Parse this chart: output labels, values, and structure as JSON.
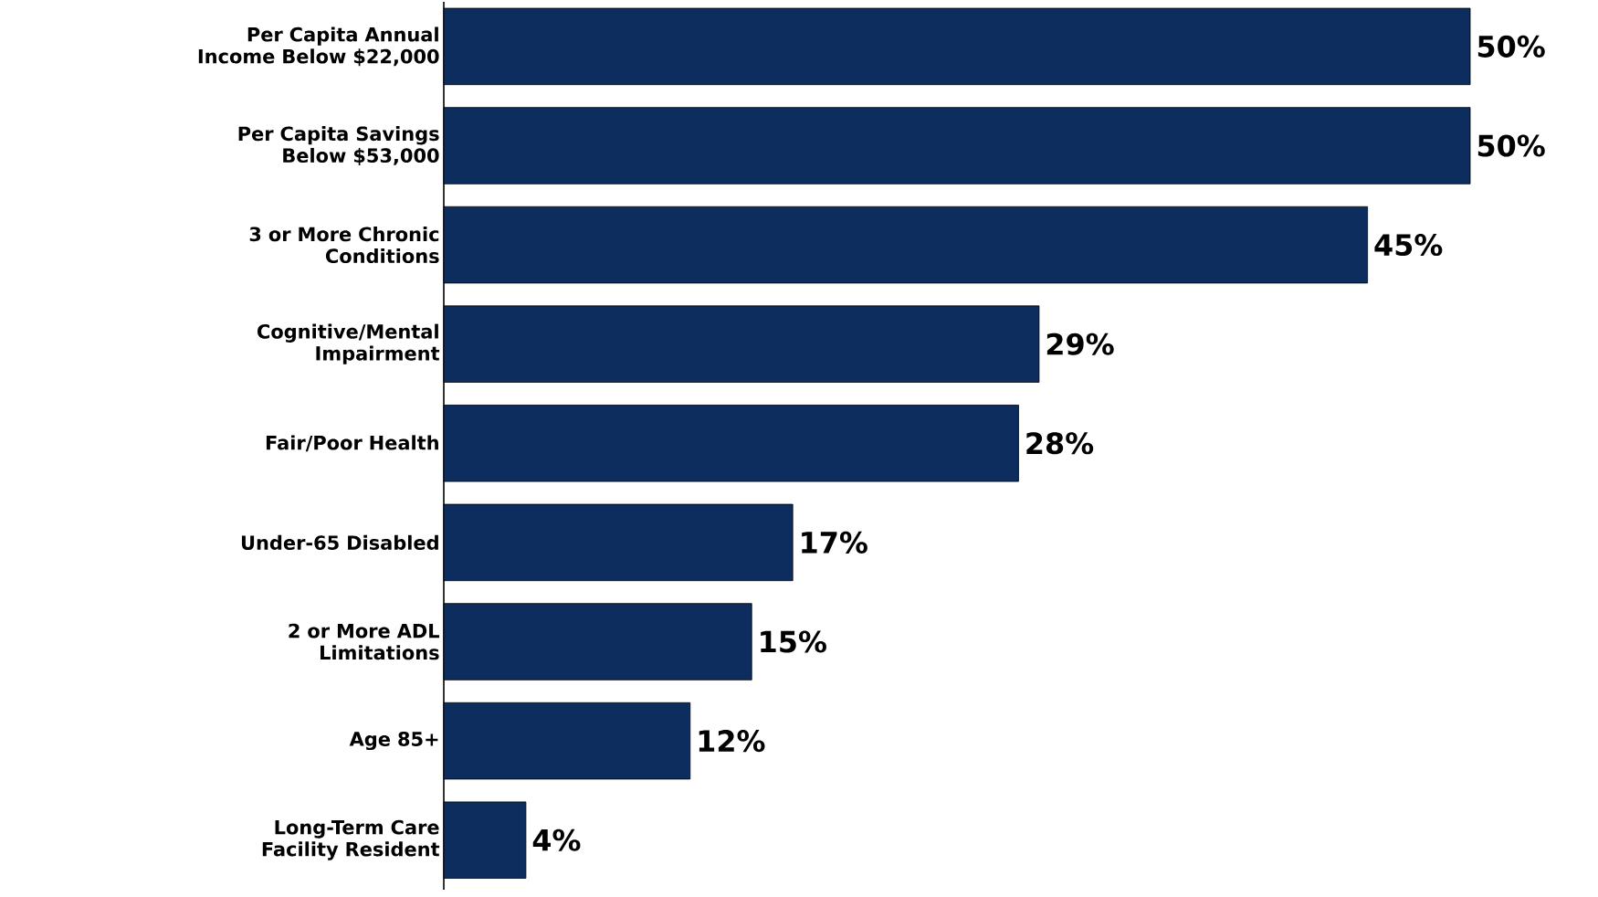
{
  "chart_data": {
    "type": "bar",
    "orientation": "horizontal",
    "color": "#0c2d5e",
    "categories": [
      "Per Capita Annual Income Below $22,000",
      "Per Capita Savings Below $53,000",
      "3 or More Chronic Conditions",
      "Cognitive/Mental Impairment",
      "Fair/Poor Health",
      "Under-65 Disabled",
      "2 or More ADL Limitations",
      "Age 85+",
      "Long-Term Care Facility Resident"
    ],
    "values": [
      50,
      50,
      45,
      29,
      28,
      17,
      15,
      12,
      4
    ],
    "value_labels": [
      "50%",
      "50%",
      "45%",
      "29%",
      "28%",
      "17%",
      "15%",
      "12%",
      "4%"
    ]
  }
}
